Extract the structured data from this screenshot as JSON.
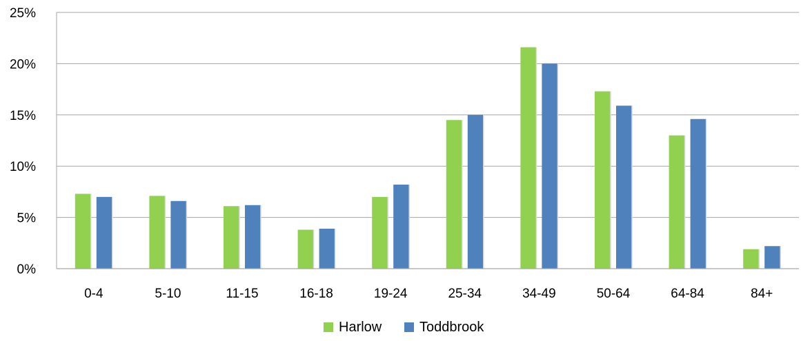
{
  "chart_data": {
    "type": "bar",
    "categories": [
      "0-4",
      "5-10",
      "11-15",
      "16-18",
      "19-24",
      "25-34",
      "34-49",
      "50-64",
      "64-84",
      "84+"
    ],
    "series": [
      {
        "name": "Harlow",
        "color": "#92d050",
        "values": [
          7.3,
          7.1,
          6.1,
          3.8,
          7.0,
          14.5,
          21.6,
          17.3,
          13.0,
          1.9
        ]
      },
      {
        "name": "Toddbrook",
        "color": "#4f81bd",
        "values": [
          7.0,
          6.6,
          6.2,
          3.9,
          8.2,
          15.0,
          20.0,
          15.9,
          14.6,
          2.2
        ]
      }
    ],
    "ylim": [
      0,
      25
    ],
    "yticks": [
      "0%",
      "5%",
      "10%",
      "15%",
      "20%",
      "25%"
    ],
    "grid": true,
    "legend_position": "bottom-center"
  }
}
